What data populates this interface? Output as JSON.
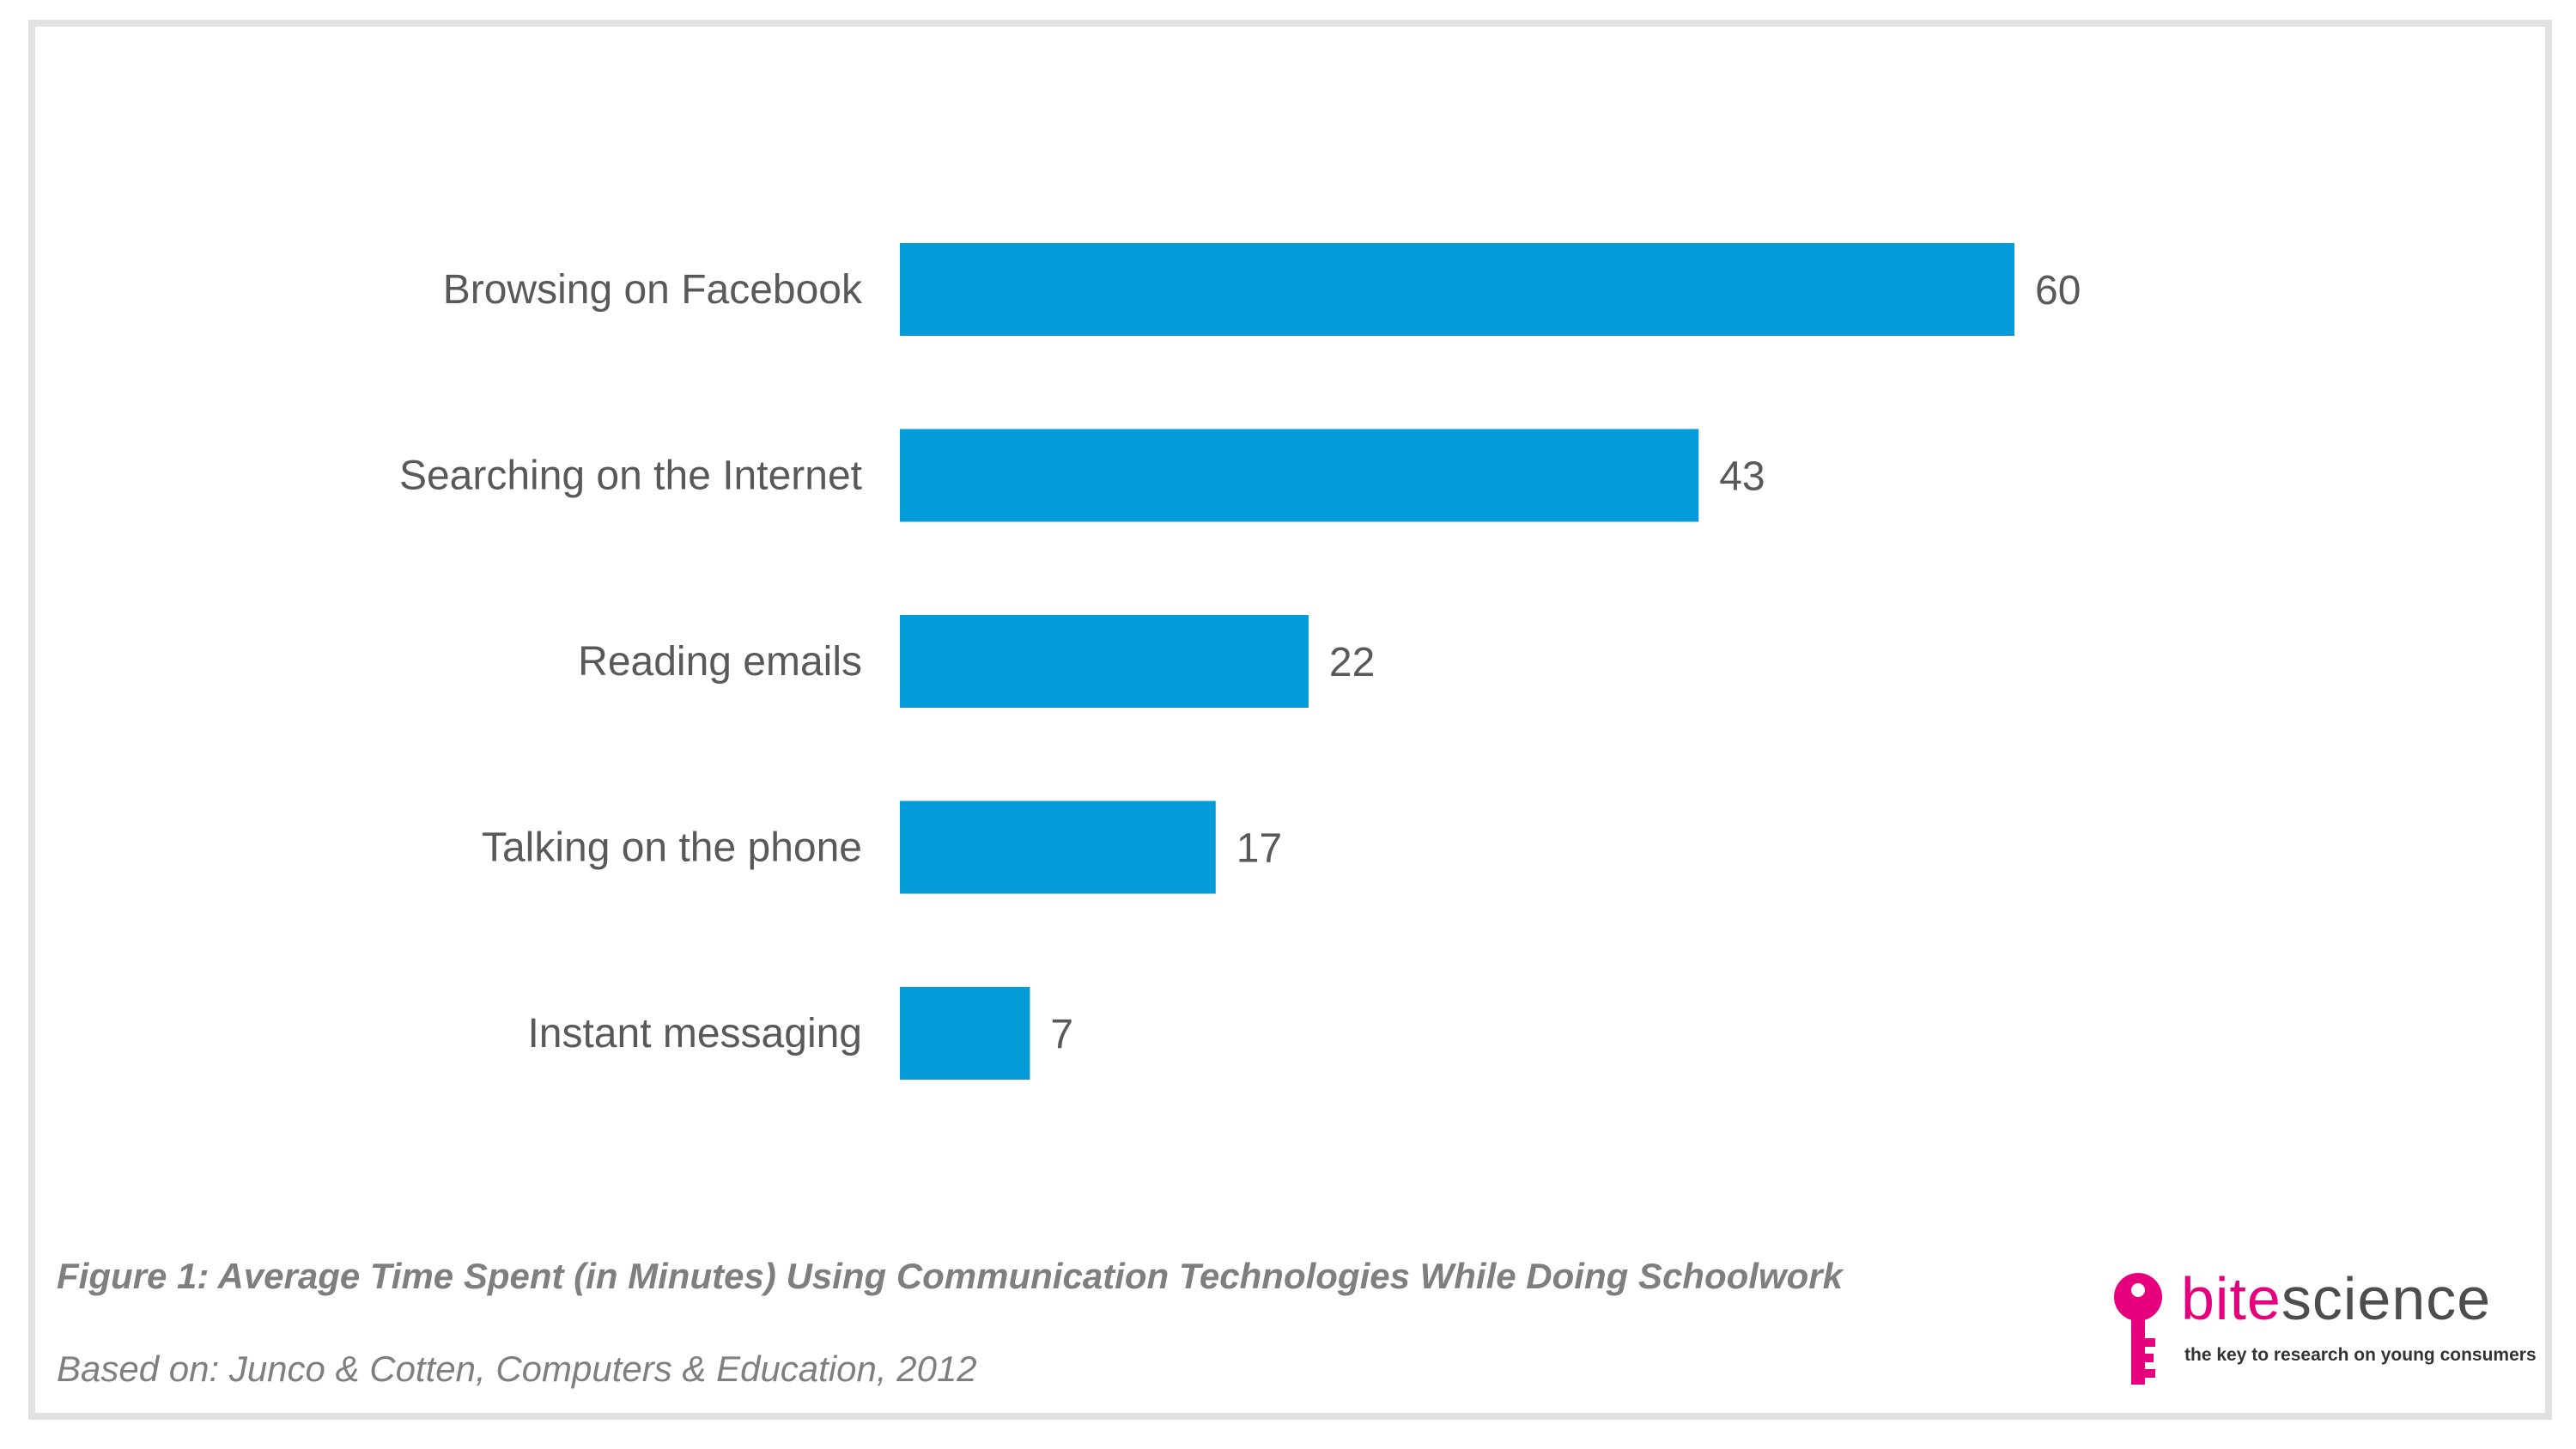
{
  "colors": {
    "bar": "#039bd8",
    "text": "#595959",
    "caption": "#7f7f7f",
    "brand_pink": "#e6007e",
    "frame": "#e1e1e1"
  },
  "chart_data": {
    "type": "bar",
    "orientation": "horizontal",
    "categories": [
      "Browsing on Facebook",
      "Searching on the Internet",
      "Reading emails",
      "Talking on the phone",
      "Instant messaging"
    ],
    "values": [
      60,
      43,
      22,
      17,
      7
    ],
    "data_labels": [
      "60",
      "43",
      "22",
      "17",
      "7"
    ],
    "xlim": [
      0,
      60
    ],
    "grid": false,
    "axes_visible": false,
    "legend": "none"
  },
  "caption": {
    "title": "Figure 1: Average Time Spent (in Minutes) Using Communication Technologies While Doing Schoolwork",
    "source": "Based on: Junco & Cotten, Computers & Education, 2012"
  },
  "logo": {
    "word_part1": "bite",
    "word_part2": "science",
    "tagline": "the key to research on young consumers",
    "icon": "key-icon"
  }
}
